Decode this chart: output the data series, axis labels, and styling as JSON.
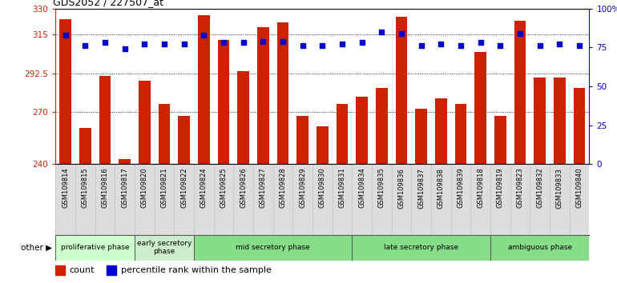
{
  "title": "GDS2052 / 227507_at",
  "samples": [
    "GSM109814",
    "GSM109815",
    "GSM109816",
    "GSM109817",
    "GSM109820",
    "GSM109821",
    "GSM109822",
    "GSM109824",
    "GSM109825",
    "GSM109826",
    "GSM109827",
    "GSM109828",
    "GSM109829",
    "GSM109830",
    "GSM109831",
    "GSM109834",
    "GSM109835",
    "GSM109836",
    "GSM109837",
    "GSM109838",
    "GSM109839",
    "GSM109818",
    "GSM109819",
    "GSM109823",
    "GSM109832",
    "GSM109833",
    "GSM109840"
  ],
  "counts": [
    324,
    261,
    291,
    243,
    288,
    275,
    268,
    326,
    312,
    294,
    319,
    322,
    268,
    262,
    275,
    279,
    284,
    325,
    272,
    278,
    275,
    305,
    268,
    323,
    290,
    290,
    284
  ],
  "percentiles": [
    83,
    76,
    78,
    74,
    77,
    77,
    77,
    83,
    78,
    78,
    79,
    79,
    76,
    76,
    77,
    78,
    85,
    84,
    76,
    77,
    76,
    78,
    76,
    84,
    76,
    77,
    76
  ],
  "ylim_left": [
    240,
    330
  ],
  "ylim_right": [
    0,
    100
  ],
  "yticks_left": [
    240,
    270,
    292.5,
    315,
    330
  ],
  "yticks_right": [
    0,
    25,
    50,
    75,
    100
  ],
  "ytick_labels_left": [
    "240",
    "270",
    "292.5",
    "315",
    "330"
  ],
  "ytick_labels_right": [
    "0",
    "25",
    "50",
    "75",
    "100%"
  ],
  "bar_color": "#cc2200",
  "dot_color": "#0000cc",
  "legend_count_label": "count",
  "legend_percentile_label": "percentile rank within the sample",
  "other_label": "other ▶",
  "phase_boundaries": [
    0,
    4,
    7,
    15,
    22,
    27
  ],
  "phase_labels": [
    "proliferative phase",
    "early secretory\nphase",
    "mid secretory phase",
    "late secretory phase",
    "ambiguous phase"
  ],
  "phase_colors": [
    "#ccffcc",
    "#cceecc",
    "#88dd88",
    "#88dd88",
    "#88dd88"
  ],
  "xtick_bg_color": "#dddddd"
}
